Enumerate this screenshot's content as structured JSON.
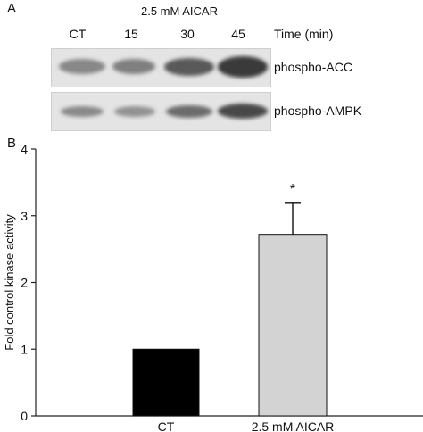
{
  "panel_a": {
    "letter": "A",
    "treatment_header": "2.5 mM AICAR",
    "columns": [
      "CT",
      "15",
      "30",
      "45"
    ],
    "time_label": "Time (min)",
    "blots": [
      {
        "label": "phospho-ACC",
        "band_intensities": [
          0.45,
          0.5,
          0.72,
          0.9
        ]
      },
      {
        "label": "phospho-AMPK",
        "band_intensities": [
          0.45,
          0.4,
          0.62,
          0.82
        ]
      }
    ]
  },
  "panel_b": {
    "letter": "B"
  },
  "chart_data": {
    "type": "bar",
    "categories": [
      "CT",
      "2.5 mM AICAR"
    ],
    "values": [
      1.0,
      2.72
    ],
    "errors": [
      0,
      0.48
    ],
    "bar_colors": [
      "#000000",
      "#d3d3d3"
    ],
    "significance": [
      "",
      "*"
    ],
    "ylabel": "Fold control kinase activity",
    "xlabel": "",
    "ylim": [
      0,
      4
    ],
    "yticks": [
      0,
      1,
      2,
      3,
      4
    ],
    "grid": false
  }
}
